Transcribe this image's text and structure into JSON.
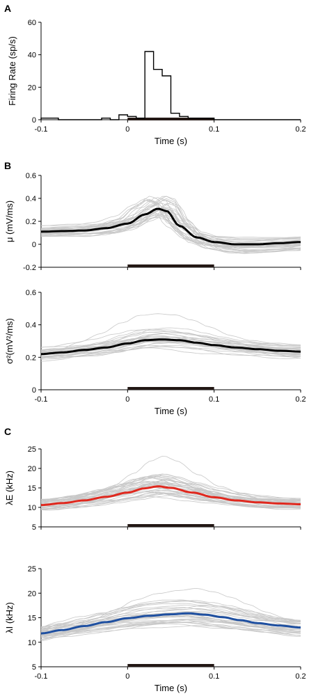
{
  "panel_letters": [
    "A",
    "B",
    "C"
  ],
  "colors": {
    "axis": "#000000",
    "individual_traces": "#c8c8c8",
    "mean_trace": "#000000",
    "lambda_E_mean": "#e0281e",
    "lambda_I_mean": "#1e4fa0",
    "stimulus_bar": "#231815"
  },
  "chart_data": [
    {
      "panel": "A",
      "type": "bar",
      "style": "step-histogram",
      "ylabel": "Firing Rate (sp/s)",
      "xlabel": "Time (s)",
      "xlim": [
        -0.1,
        0.2
      ],
      "ylim": [
        0,
        60
      ],
      "xticks": [
        "-0.1",
        "0",
        "0.1",
        "0.2"
      ],
      "yticks": [
        "0",
        "20",
        "40",
        "60"
      ],
      "bin_width": 0.01,
      "bins": [
        {
          "x": -0.1,
          "y": 1
        },
        {
          "x": -0.09,
          "y": 1
        },
        {
          "x": -0.08,
          "y": 0
        },
        {
          "x": -0.07,
          "y": 0
        },
        {
          "x": -0.06,
          "y": 0
        },
        {
          "x": -0.05,
          "y": 0
        },
        {
          "x": -0.04,
          "y": 0
        },
        {
          "x": -0.03,
          "y": 1
        },
        {
          "x": -0.02,
          "y": 0
        },
        {
          "x": -0.01,
          "y": 3
        },
        {
          "x": 0.0,
          "y": 2
        },
        {
          "x": 0.01,
          "y": 1
        },
        {
          "x": 0.02,
          "y": 42
        },
        {
          "x": 0.03,
          "y": 31
        },
        {
          "x": 0.04,
          "y": 27
        },
        {
          "x": 0.05,
          "y": 4
        },
        {
          "x": 0.06,
          "y": 2
        },
        {
          "x": 0.07,
          "y": 1
        },
        {
          "x": 0.08,
          "y": 1
        },
        {
          "x": 0.09,
          "y": 1
        },
        {
          "x": 0.1,
          "y": 0
        },
        {
          "x": 0.11,
          "y": 0
        },
        {
          "x": 0.12,
          "y": 0
        },
        {
          "x": 0.13,
          "y": 0
        },
        {
          "x": 0.14,
          "y": 0
        },
        {
          "x": 0.15,
          "y": 0
        },
        {
          "x": 0.16,
          "y": 0
        },
        {
          "x": 0.17,
          "y": 0
        },
        {
          "x": 0.18,
          "y": 0
        },
        {
          "x": 0.19,
          "y": 0
        }
      ],
      "stimulus": [
        0,
        0.1
      ]
    },
    {
      "panel": "B",
      "type": "line",
      "ylabel": "μ (mV/ms)",
      "xlabel": "",
      "xlim": [
        -0.1,
        0.2
      ],
      "ylim": [
        -0.2,
        0.6
      ],
      "yticks": [
        "-0.2",
        "0",
        "0.2",
        "0.4",
        "0.6"
      ],
      "n_individual_traces": 30,
      "mean": {
        "x": [
          -0.1,
          -0.075,
          -0.05,
          -0.025,
          0,
          0.02,
          0.035,
          0.045,
          0.06,
          0.08,
          0.1,
          0.125,
          0.15,
          0.175,
          0.2
        ],
        "y": [
          0.11,
          0.115,
          0.12,
          0.14,
          0.18,
          0.26,
          0.31,
          0.29,
          0.16,
          0.06,
          0.02,
          0.0,
          0.0,
          0.01,
          0.02
        ]
      },
      "stimulus": [
        0,
        0.1
      ]
    },
    {
      "panel": "B",
      "type": "line",
      "ylabel": "σ²(mV²/ms)",
      "xlabel": "Time (s)",
      "xlim": [
        -0.1,
        0.2
      ],
      "ylim": [
        0,
        0.6
      ],
      "xticks": [
        "-0.1",
        "0",
        "0.1",
        "0.2"
      ],
      "yticks": [
        "0",
        "0.2",
        "0.4",
        "0.6"
      ],
      "n_individual_traces": 30,
      "mean": {
        "x": [
          -0.1,
          -0.075,
          -0.05,
          -0.025,
          0,
          0.02,
          0.04,
          0.06,
          0.08,
          0.1,
          0.125,
          0.15,
          0.175,
          0.2
        ],
        "y": [
          0.22,
          0.23,
          0.245,
          0.26,
          0.285,
          0.305,
          0.31,
          0.305,
          0.29,
          0.275,
          0.26,
          0.25,
          0.24,
          0.235
        ]
      },
      "stimulus": [
        0,
        0.1
      ]
    },
    {
      "panel": "C",
      "type": "line",
      "ylabel": "λE (kHz)",
      "xlabel": "",
      "xlim": [
        -0.1,
        0.2
      ],
      "ylim": [
        5,
        25
      ],
      "yticks": [
        "5",
        "10",
        "15",
        "20",
        "25"
      ],
      "n_individual_traces": 35,
      "mean": {
        "x": [
          -0.1,
          -0.075,
          -0.05,
          -0.025,
          0,
          0.02,
          0.035,
          0.05,
          0.075,
          0.1,
          0.125,
          0.15,
          0.175,
          0.2
        ],
        "y": [
          10.6,
          11.1,
          11.8,
          12.7,
          13.8,
          14.9,
          15.4,
          15.0,
          13.8,
          12.6,
          11.8,
          11.3,
          11.0,
          10.8
        ]
      },
      "stimulus": [
        0,
        0.1
      ]
    },
    {
      "panel": "C",
      "type": "line",
      "ylabel": "λI (kHz)",
      "xlabel": "Time (s)",
      "xlim": [
        -0.1,
        0.2
      ],
      "ylim": [
        5,
        25
      ],
      "xticks": [
        "-0.1",
        "0",
        "0.1",
        "0.2"
      ],
      "yticks": [
        "5",
        "10",
        "15",
        "20",
        "25"
      ],
      "n_individual_traces": 35,
      "mean": {
        "x": [
          -0.1,
          -0.075,
          -0.05,
          -0.025,
          0,
          0.025,
          0.05,
          0.07,
          0.09,
          0.11,
          0.13,
          0.15,
          0.175,
          0.2
        ],
        "y": [
          11.8,
          12.5,
          13.3,
          14.1,
          14.9,
          15.4,
          15.7,
          15.9,
          15.6,
          15.1,
          14.5,
          13.9,
          13.4,
          13.0
        ]
      },
      "stimulus": [
        0,
        0.1
      ]
    }
  ]
}
